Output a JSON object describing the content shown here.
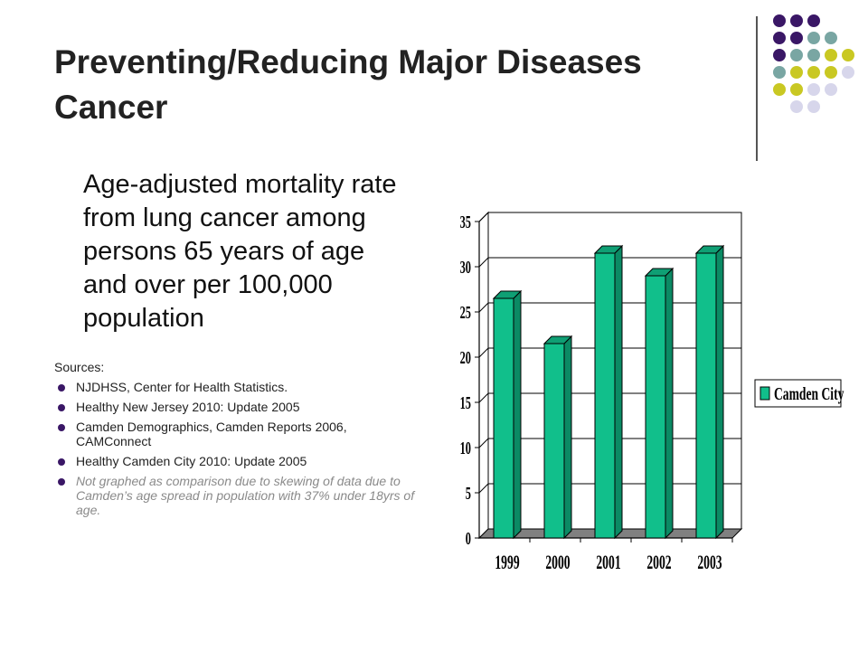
{
  "slide": {
    "title_line1": "Preventing/Reducing Major Diseases",
    "title_line2": "Cancer",
    "lead": "Age-adjusted mortality rate from lung cancer among persons 65 years of age and over per 100,000 population",
    "sources_heading": "Sources:",
    "sources": [
      "NJDHSS, Center for Health Statistics.",
      "Healthy New Jersey 2010:  Update 2005",
      "Camden Demographics, Camden Reports 2006, CAMConnect",
      "Healthy Camden City 2010:  Update 2005",
      "Not graphed as comparison due to skewing of data due to Camden’s  age spread in population with 37% under 18yrs of age."
    ]
  },
  "decor": {
    "colors": {
      "purple": "#3a1766",
      "teal": "#79a6a3",
      "olive": "#c9c823",
      "lavender": "#d7d6eb"
    },
    "dot_rows": [
      [
        "purple",
        "purple",
        "purple"
      ],
      [
        "purple",
        "purple",
        "teal",
        "teal"
      ],
      [
        "purple",
        "teal",
        "teal",
        "olive",
        "olive"
      ],
      [
        "teal",
        "olive",
        "olive",
        "olive",
        "lavender"
      ],
      [
        "olive",
        "olive",
        "lavender",
        "lavender"
      ],
      [
        "lavender",
        "lavender"
      ]
    ]
  },
  "chart_data": {
    "type": "bar",
    "categories": [
      "1999",
      "2000",
      "2001",
      "2002",
      "2003"
    ],
    "series": [
      {
        "name": "Camden City",
        "values": [
          26.5,
          21.5,
          31.5,
          29,
          31.5
        ]
      }
    ],
    "ylim": [
      0,
      35
    ],
    "yticks": [
      0,
      5,
      10,
      15,
      20,
      25,
      30,
      35
    ],
    "grid": true,
    "legend": "right",
    "bar_color": "#11bf8b",
    "bar_side_color": "#0b8a64",
    "bar_top_color": "#0f9f74",
    "floor_color": "#808080"
  }
}
